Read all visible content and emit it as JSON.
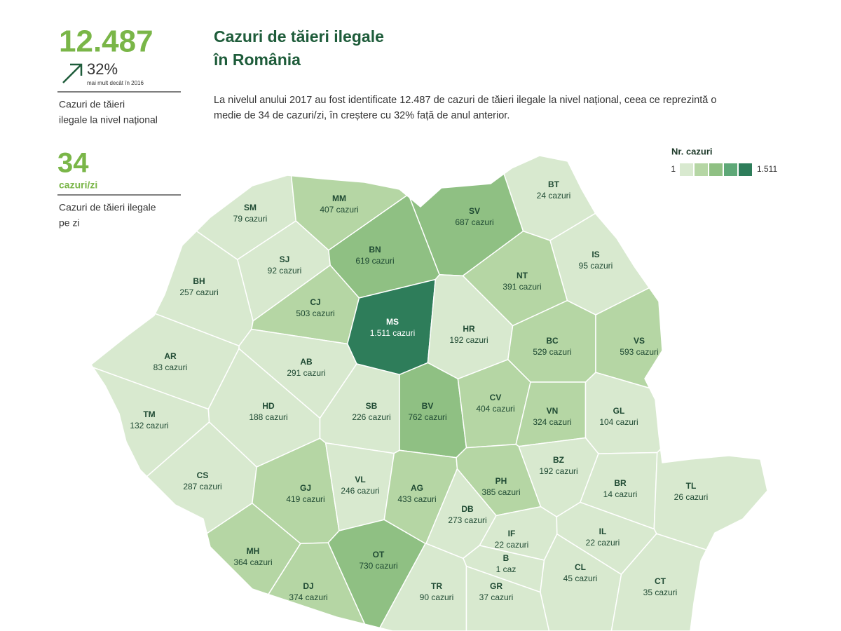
{
  "stats": {
    "total": "12.487",
    "increase": "32%",
    "increase_note": "mai mult decât în 2016",
    "total_caption": [
      "Cazuri de tăieri",
      "ilegale la nivel național"
    ],
    "per_day": "34",
    "per_day_unit": "cazuri/zi",
    "per_day_caption": [
      "Cazuri de tăieri ilegale",
      "pe zi"
    ]
  },
  "header": {
    "title": [
      "Cazuri de tăieri ilegale",
      "în România"
    ],
    "description": [
      "La nivelul anului 2017 au fost identificate 12.487 de cazuri de tăieri ilegale la nivel național, ceea ce reprezintă o",
      "medie de 34 de cazuri/zi, în creștere cu 32% față de anul anterior."
    ]
  },
  "legend": {
    "title": "Nr. cazuri",
    "min": {
      "value": 1,
      "label": "1"
    },
    "max": {
      "value": 1511,
      "label": "1.511"
    },
    "colors": [
      "#d8e9cf",
      "#b5d6a4",
      "#8fc083",
      "#5ea877",
      "#2e7d5a"
    ]
  },
  "counties": [
    {
      "code": "SM",
      "label": "79 cazuri",
      "value": 79
    },
    {
      "code": "MM",
      "label": "407 cazuri",
      "value": 407
    },
    {
      "code": "BT",
      "label": "24 cazuri",
      "value": 24
    },
    {
      "code": "SV",
      "label": "687 cazuri",
      "value": 687
    },
    {
      "code": "SJ",
      "label": "92 cazuri",
      "value": 92
    },
    {
      "code": "BN",
      "label": "619 cazuri",
      "value": 619
    },
    {
      "code": "BH",
      "label": "257 cazuri",
      "value": 257
    },
    {
      "code": "CJ",
      "label": "503 cazuri",
      "value": 503
    },
    {
      "code": "IS",
      "label": "95 cazuri",
      "value": 95
    },
    {
      "code": "NT",
      "label": "391 cazuri",
      "value": 391
    },
    {
      "code": "MS",
      "label": "1.511 cazuri",
      "value": 1511
    },
    {
      "code": "HR",
      "label": "192 cazuri",
      "value": 192
    },
    {
      "code": "BC",
      "label": "529 cazuri",
      "value": 529
    },
    {
      "code": "VS",
      "label": "593 cazuri",
      "value": 593
    },
    {
      "code": "AR",
      "label": "83 cazuri",
      "value": 83
    },
    {
      "code": "AB",
      "label": "291 cazuri",
      "value": 291
    },
    {
      "code": "TM",
      "label": "132 cazuri",
      "value": 132
    },
    {
      "code": "HD",
      "label": "188 cazuri",
      "value": 188
    },
    {
      "code": "SB",
      "label": "226 cazuri",
      "value": 226
    },
    {
      "code": "BV",
      "label": "762 cazuri",
      "value": 762
    },
    {
      "code": "CV",
      "label": "404 cazuri",
      "value": 404
    },
    {
      "code": "VN",
      "label": "324 cazuri",
      "value": 324
    },
    {
      "code": "GL",
      "label": "104 cazuri",
      "value": 104
    },
    {
      "code": "CS",
      "label": "287 cazuri",
      "value": 287
    },
    {
      "code": "GJ",
      "label": "419 cazuri",
      "value": 419
    },
    {
      "code": "VL",
      "label": "246 cazuri",
      "value": 246
    },
    {
      "code": "AG",
      "label": "433 cazuri",
      "value": 433
    },
    {
      "code": "PH",
      "label": "385 cazuri",
      "value": 385
    },
    {
      "code": "BZ",
      "label": "192 cazuri",
      "value": 192
    },
    {
      "code": "BR",
      "label": "14 cazuri",
      "value": 14
    },
    {
      "code": "TL",
      "label": "26 cazuri",
      "value": 26
    },
    {
      "code": "DB",
      "label": "273 cazuri",
      "value": 273
    },
    {
      "code": "IF",
      "label": "22 cazuri",
      "value": 22
    },
    {
      "code": "IL",
      "label": "22 cazuri",
      "value": 22
    },
    {
      "code": "MH",
      "label": "364 cazuri",
      "value": 364
    },
    {
      "code": "OT",
      "label": "730 cazuri",
      "value": 730
    },
    {
      "code": "B",
      "label": "1 caz",
      "value": 1
    },
    {
      "code": "CL",
      "label": "45 cazuri",
      "value": 45
    },
    {
      "code": "DJ",
      "label": "374 cazuri",
      "value": 374
    },
    {
      "code": "TR",
      "label": "90 cazuri",
      "value": 90
    },
    {
      "code": "GR",
      "label": "37 cazuri",
      "value": 37
    },
    {
      "code": "CT",
      "label": "35 cazuri",
      "value": 35
    }
  ]
}
